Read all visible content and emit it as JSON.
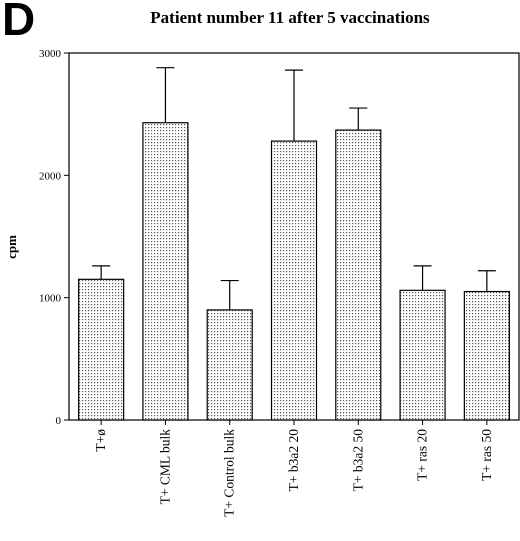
{
  "panel_label": "D",
  "chart_data": {
    "type": "bar",
    "title": "Patient number 11 after 5 vaccinations",
    "xlabel": "",
    "ylabel": "cpm",
    "ylim": [
      0,
      3000
    ],
    "yticks": [
      0,
      1000,
      2000,
      3000
    ],
    "categories": [
      "T+ø",
      "T+ CML bulk",
      "T+ Control bulk",
      "T+ b3a2 20",
      "T+ b3a2 50",
      "T+ ras 20",
      "T+ ras 50"
    ],
    "values": [
      1150,
      2430,
      900,
      2280,
      2370,
      1060,
      1050
    ],
    "error_upper": [
      1260,
      2880,
      1140,
      2860,
      2550,
      1260,
      1220
    ],
    "bar_fill": "dotted-gray",
    "grid": false,
    "legend": "none"
  }
}
